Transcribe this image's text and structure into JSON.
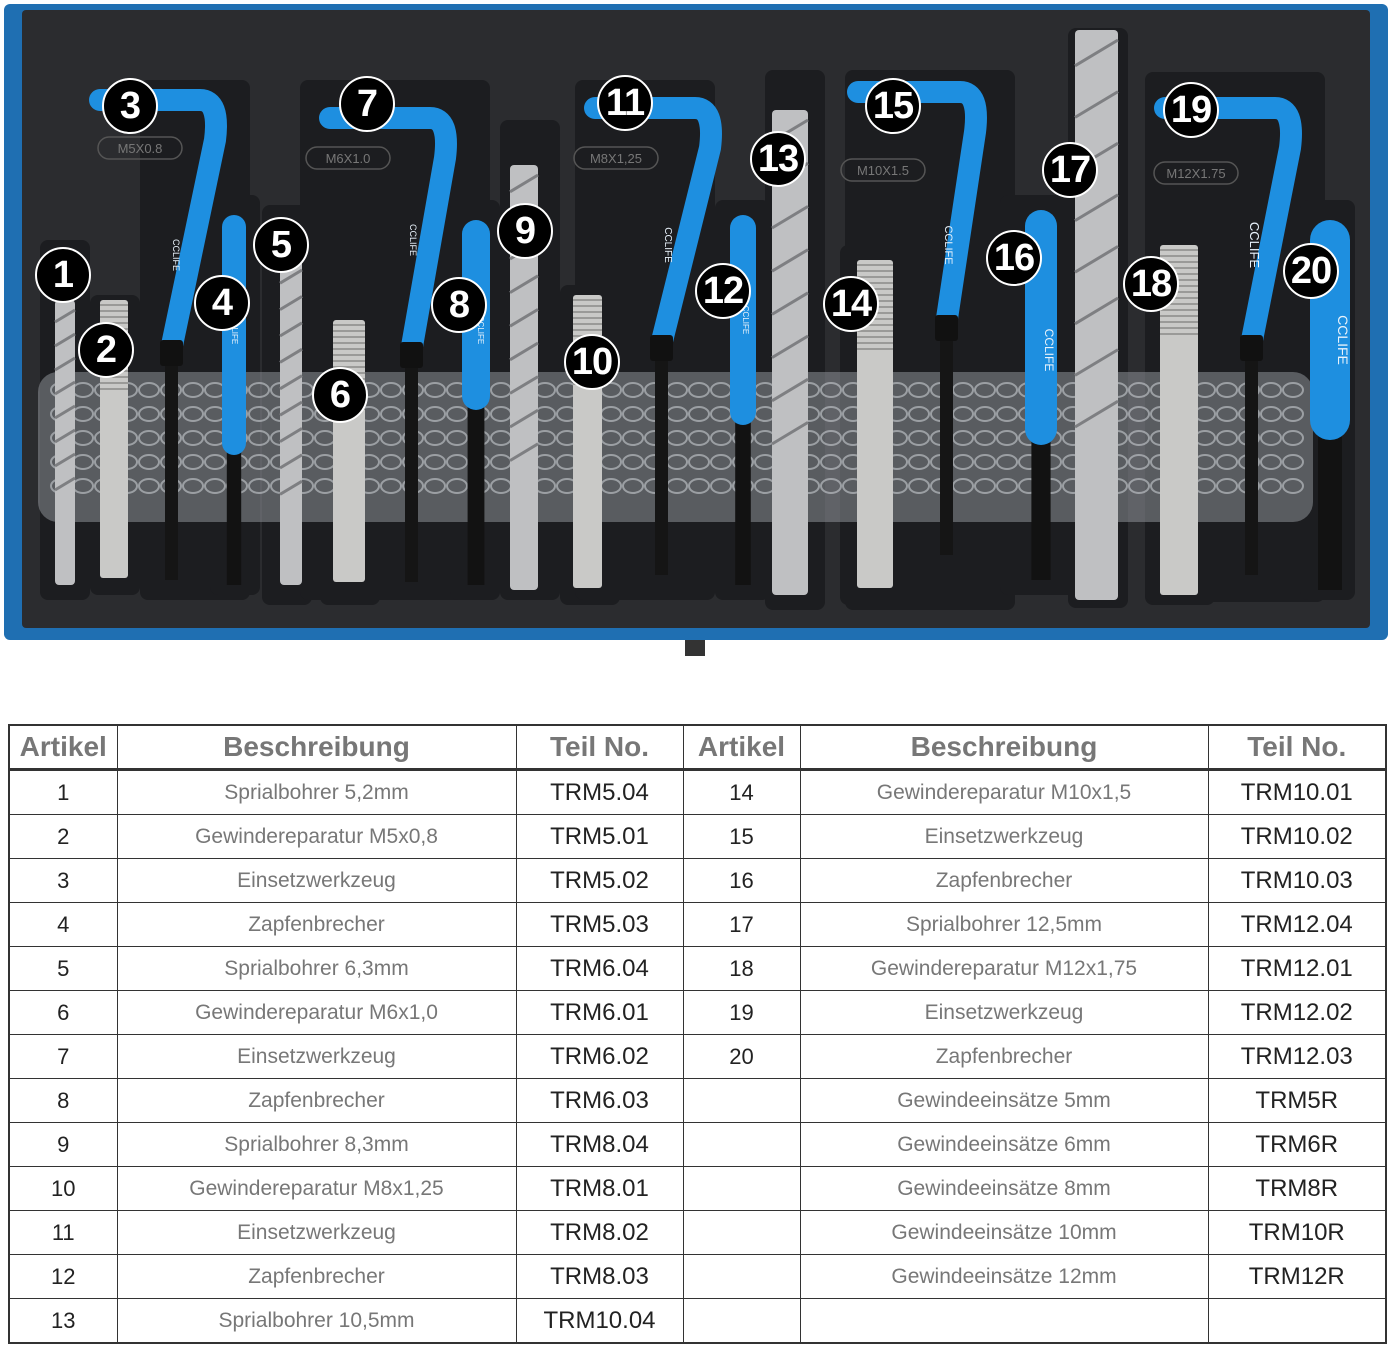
{
  "photo": {
    "size_labels": [
      "M5X0.8",
      "M6X1.0",
      "M8X1,25",
      "M10X1.5",
      "M12X1.75"
    ],
    "brand_mark": "CCLIFE",
    "badges": [
      "1",
      "2",
      "3",
      "4",
      "5",
      "6",
      "7",
      "8",
      "9",
      "10",
      "11",
      "12",
      "13",
      "14",
      "15",
      "16",
      "17",
      "18",
      "19",
      "20"
    ],
    "colors": {
      "tray": "#2b2c2f",
      "frame": "#1f6fb2",
      "handle": "#1e8fe0"
    }
  },
  "table": {
    "headers": [
      "Artikel",
      "Beschreibung",
      "Teil No.",
      "Artikel",
      "Beschreibung",
      "Teil No."
    ],
    "rows": [
      {
        "left": [
          "1",
          "Sprialbohrer 5,2mm",
          "TRM5.04"
        ],
        "right": [
          "14",
          "Gewindereparatur M10x1,5",
          "TRM10.01"
        ]
      },
      {
        "left": [
          "2",
          "Gewindereparatur M5x0,8",
          "TRM5.01"
        ],
        "right": [
          "15",
          "Einsetzwerkzeug",
          "TRM10.02"
        ]
      },
      {
        "left": [
          "3",
          "Einsetzwerkzeug",
          "TRM5.02"
        ],
        "right": [
          "16",
          "Zapfenbrecher",
          "TRM10.03"
        ]
      },
      {
        "left": [
          "4",
          "Zapfenbrecher",
          "TRM5.03"
        ],
        "right": [
          "17",
          "Sprialbohrer 12,5mm",
          "TRM12.04"
        ]
      },
      {
        "left": [
          "5",
          "Sprialbohrer 6,3mm",
          "TRM6.04"
        ],
        "right": [
          "18",
          "Gewindereparatur M12x1,75",
          "TRM12.01"
        ]
      },
      {
        "left": [
          "6",
          "Gewindereparatur M6x1,0",
          "TRM6.01"
        ],
        "right": [
          "19",
          "Einsetzwerkzeug",
          "TRM12.02"
        ]
      },
      {
        "left": [
          "7",
          "Einsetzwerkzeug",
          "TRM6.02"
        ],
        "right": [
          "20",
          "Zapfenbrecher",
          "TRM12.03"
        ]
      },
      {
        "left": [
          "8",
          "Zapfenbrecher",
          "TRM6.03"
        ],
        "right": [
          "",
          "Gewindeeinsätze  5mm",
          "TRM5R"
        ]
      },
      {
        "left": [
          "9",
          "Sprialbohrer 8,3mm",
          "TRM8.04"
        ],
        "right": [
          "",
          "Gewindeeinsätze  6mm",
          "TRM6R"
        ]
      },
      {
        "left": [
          "10",
          "Gewindereparatur M8x1,25",
          "TRM8.01"
        ],
        "right": [
          "",
          "Gewindeeinsätze  8mm",
          "TRM8R"
        ]
      },
      {
        "left": [
          "11",
          "Einsetzwerkzeug",
          "TRM8.02"
        ],
        "right": [
          "",
          "Gewindeeinsätze  10mm",
          "TRM10R"
        ]
      },
      {
        "left": [
          "12",
          "Zapfenbrecher",
          "TRM8.03"
        ],
        "right": [
          "",
          "Gewindeeinsätze  12mm",
          "TRM12R"
        ]
      },
      {
        "left": [
          "13",
          "Sprialbohrer 10,5mm",
          "TRM10.04"
        ],
        "right": [
          "",
          "",
          ""
        ]
      }
    ]
  }
}
